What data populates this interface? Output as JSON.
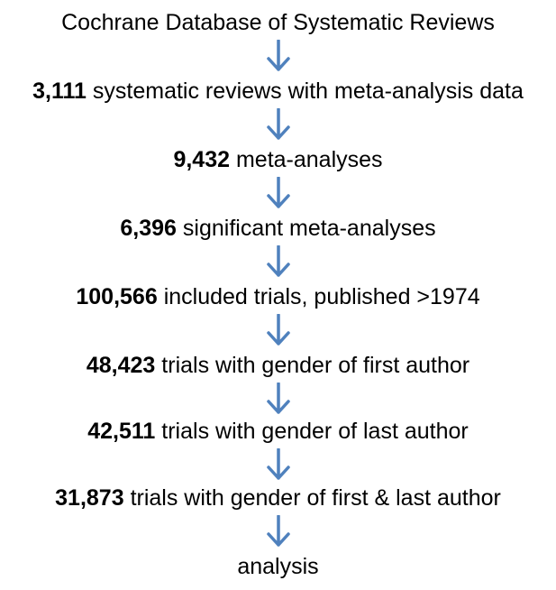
{
  "steps": [
    {
      "count": "",
      "label": "Cochrane Database of Systematic Reviews"
    },
    {
      "count": "3,111",
      "label": "systematic reviews with meta-analysis data"
    },
    {
      "count": "9,432",
      "label": "meta-analyses"
    },
    {
      "count": "6,396",
      "label": "significant meta-analyses"
    },
    {
      "count": "100,566",
      "label": "included trials, published >1974"
    },
    {
      "count": "48,423",
      "label": "trials with gender of first author"
    },
    {
      "count": "42,511",
      "label": "trials with gender of last author"
    },
    {
      "count": "31,873",
      "label": "trials with gender of first & last author"
    },
    {
      "count": "",
      "label": "analysis"
    }
  ],
  "colors": {
    "arrow": "#4f81bd",
    "text": "#000000"
  },
  "icons": {
    "connector": "arrow-down-icon"
  }
}
